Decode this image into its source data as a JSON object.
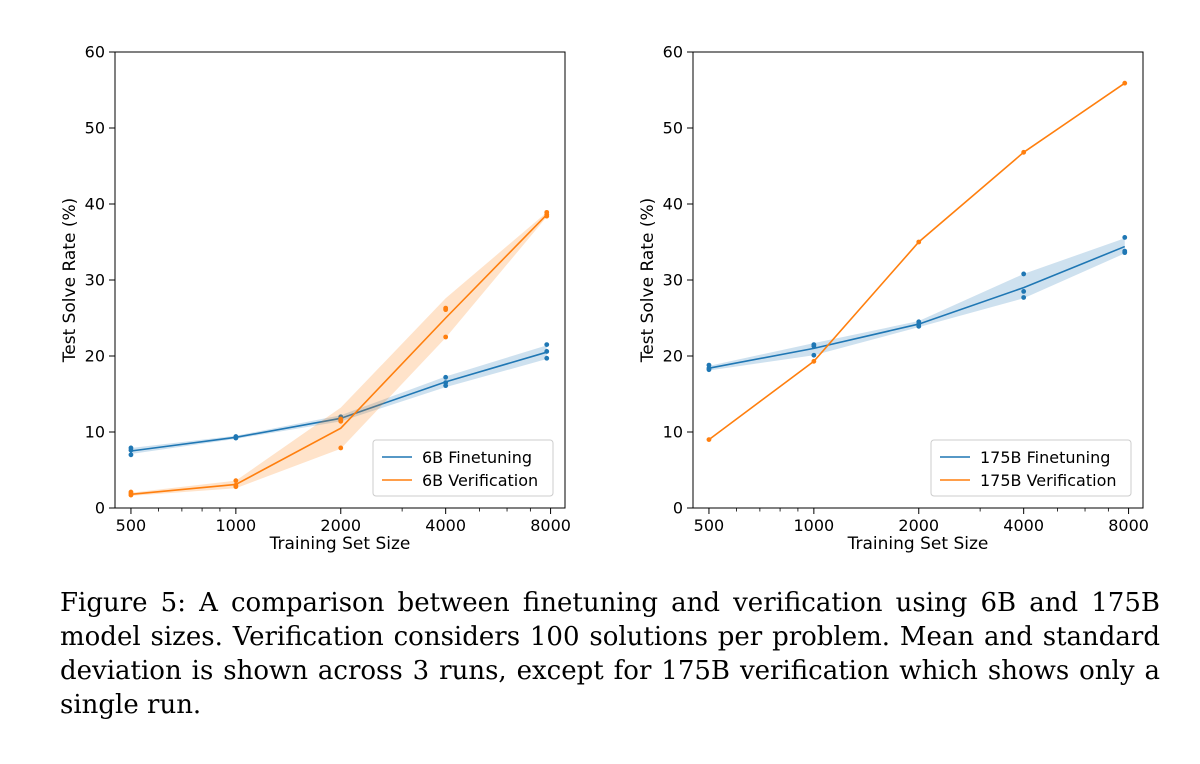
{
  "chart_data": [
    {
      "type": "line",
      "title": "",
      "xlabel": "Training Set Size",
      "ylabel": "Test Solve Rate (%)",
      "xscale": "log",
      "xlim": [
        450,
        8800
      ],
      "ylim": [
        0,
        60
      ],
      "xticks": [
        500,
        1000,
        2000,
        4000,
        8000
      ],
      "xtick_labels": [
        "500",
        "1000",
        "2000",
        "4000",
        "8000"
      ],
      "yticks": [
        0,
        10,
        20,
        30,
        40,
        50,
        60
      ],
      "ytick_labels": [
        "0",
        "10",
        "20",
        "30",
        "40",
        "50",
        "60"
      ],
      "grid": false,
      "legend": "lower-right",
      "series": [
        {
          "name": "6B Finetuning",
          "color": "#1f77b4",
          "x": [
            500,
            1000,
            2000,
            4000,
            7800
          ],
          "mean": [
            7.5,
            9.3,
            11.8,
            16.6,
            20.5
          ],
          "std_low": [
            7.1,
            9.1,
            11.4,
            15.9,
            19.6
          ],
          "std_high": [
            7.9,
            9.5,
            12.2,
            17.3,
            21.4
          ],
          "runs": [
            [
              7.0,
              7.6,
              7.9
            ],
            [
              9.2,
              9.3,
              9.4
            ],
            [
              11.5,
              11.8,
              12.0
            ],
            [
              16.1,
              16.5,
              17.2
            ],
            [
              19.7,
              20.6,
              21.5
            ]
          ]
        },
        {
          "name": "6B Verification",
          "color": "#ff7f0e",
          "x": [
            500,
            1000,
            2000,
            4000,
            7800
          ],
          "mean": [
            1.8,
            3.1,
            10.5,
            25.0,
            38.6
          ],
          "std_low": [
            1.6,
            2.6,
            7.8,
            22.4,
            38.3
          ],
          "std_high": [
            2.0,
            3.6,
            13.2,
            27.6,
            38.9
          ],
          "runs": [
            [
              1.7,
              1.9,
              2.1
            ],
            [
              2.8,
              3.0,
              3.6
            ],
            [
              7.9,
              11.4,
              11.7
            ],
            [
              22.5,
              26.1,
              26.3
            ],
            [
              38.4,
              38.6,
              38.9
            ]
          ]
        }
      ]
    },
    {
      "type": "line",
      "title": "",
      "xlabel": "Training Set Size",
      "ylabel": "Test Solve Rate (%)",
      "xscale": "log",
      "xlim": [
        450,
        8800
      ],
      "ylim": [
        0,
        60
      ],
      "xticks": [
        500,
        1000,
        2000,
        4000,
        8000
      ],
      "xtick_labels": [
        "500",
        "1000",
        "2000",
        "4000",
        "8000"
      ],
      "yticks": [
        0,
        10,
        20,
        30,
        40,
        50,
        60
      ],
      "ytick_labels": [
        "0",
        "10",
        "20",
        "30",
        "40",
        "50",
        "60"
      ],
      "grid": false,
      "legend": "lower-right",
      "series": [
        {
          "name": "175B Finetuning",
          "color": "#1f77b4",
          "x": [
            500,
            1000,
            2000,
            4000,
            7800
          ],
          "mean": [
            18.4,
            21.0,
            24.2,
            29.0,
            34.4
          ],
          "std_low": [
            18.1,
            20.1,
            23.8,
            27.6,
            33.5
          ],
          "std_high": [
            18.7,
            21.7,
            24.6,
            30.8,
            35.5
          ],
          "runs": [
            [
              18.2,
              18.4,
              18.8
            ],
            [
              20.1,
              21.3,
              21.5
            ],
            [
              23.9,
              24.2,
              24.5
            ],
            [
              27.7,
              28.5,
              30.8
            ],
            [
              33.6,
              33.8,
              35.6
            ]
          ]
        },
        {
          "name": "175B Verification",
          "color": "#ff7f0e",
          "x": [
            500,
            1000,
            2000,
            4000,
            7800
          ],
          "mean": [
            9.0,
            19.3,
            35.0,
            46.8,
            55.9
          ],
          "runs": [
            [
              9.0
            ],
            [
              19.3
            ],
            [
              35.0
            ],
            [
              46.8
            ],
            [
              55.9
            ]
          ]
        }
      ]
    }
  ],
  "caption": "Figure 5: A comparison between finetuning and verification using 6B and 175B model sizes. Verification considers 100 solutions per problem. Mean and standard deviation is shown across 3 runs, except for 175B verification which shows only a single run."
}
